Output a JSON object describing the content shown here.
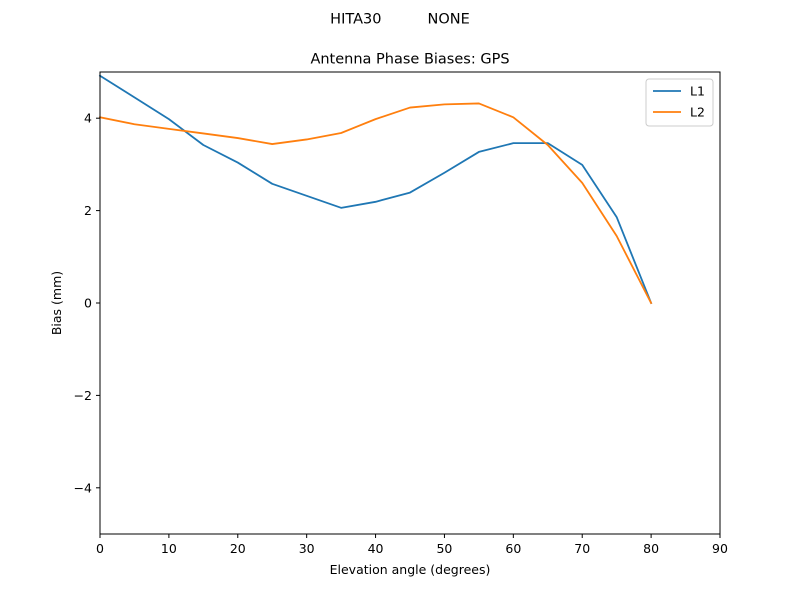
{
  "figure": {
    "suptitle": "HITA30          NONE"
  },
  "chart_data": {
    "type": "line",
    "title": "Antenna Phase Biases: GPS",
    "xlabel": "Elevation angle (degrees)",
    "ylabel": "Bias (mm)",
    "xlim": [
      0,
      90
    ],
    "ylim": [
      -5,
      5
    ],
    "xticks": [
      0,
      10,
      20,
      30,
      40,
      50,
      60,
      70,
      80,
      90
    ],
    "yticks": [
      -4,
      -2,
      0,
      2,
      4
    ],
    "grid": false,
    "legend_position": "top-right",
    "series": [
      {
        "name": "L1",
        "color": "#1f77b4",
        "x": [
          0,
          5,
          10,
          15,
          20,
          25,
          30,
          35,
          40,
          45,
          50,
          55,
          60,
          65,
          70,
          75,
          80
        ],
        "y": [
          4.92,
          4.45,
          3.98,
          3.42,
          3.04,
          2.58,
          2.32,
          2.06,
          2.19,
          2.39,
          2.82,
          3.27,
          3.46,
          3.46,
          2.99,
          1.86,
          0.0
        ]
      },
      {
        "name": "L2",
        "color": "#ff7f0e",
        "x": [
          0,
          5,
          10,
          15,
          20,
          25,
          30,
          35,
          40,
          45,
          50,
          55,
          60,
          65,
          70,
          75,
          80
        ],
        "y": [
          4.02,
          3.87,
          3.77,
          3.67,
          3.57,
          3.44,
          3.54,
          3.68,
          3.98,
          4.23,
          4.3,
          4.32,
          4.02,
          3.42,
          2.6,
          1.45,
          0.0
        ]
      }
    ]
  }
}
